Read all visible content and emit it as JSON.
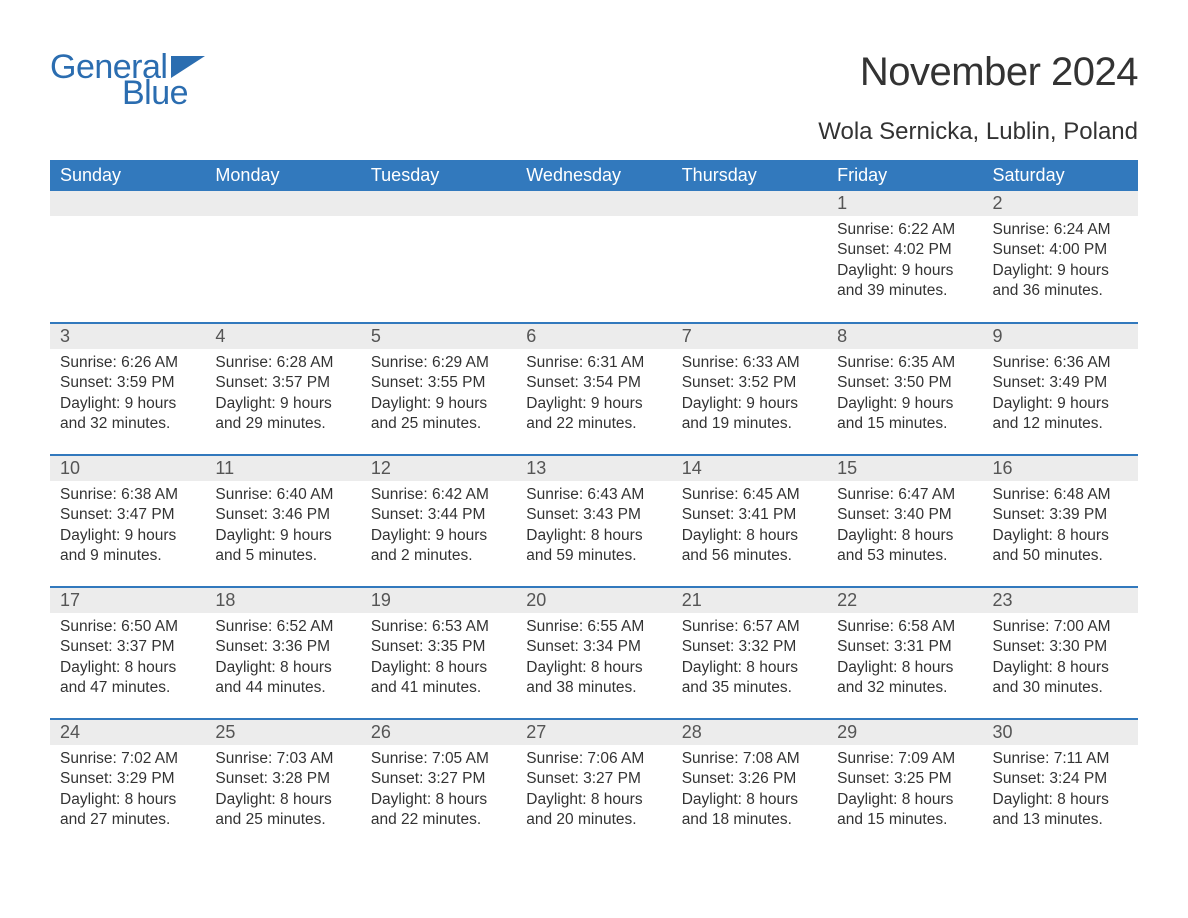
{
  "logo": {
    "general": "General",
    "blue": "Blue"
  },
  "title": "November 2024",
  "location": "Wola Sernicka, Lublin, Poland",
  "colors": {
    "header_bg": "#3279bd",
    "header_text": "#ffffff",
    "daynum_bg": "#ececec",
    "row_border": "#3279bd",
    "logo_color": "#2b6db0",
    "body_text": "#333333"
  },
  "weekdays": [
    "Sunday",
    "Monday",
    "Tuesday",
    "Wednesday",
    "Thursday",
    "Friday",
    "Saturday"
  ],
  "calendar": {
    "start_weekday_index": 5,
    "days": [
      {
        "n": 1,
        "sunrise": "6:22 AM",
        "sunset": "4:02 PM",
        "daylight": "9 hours and 39 minutes."
      },
      {
        "n": 2,
        "sunrise": "6:24 AM",
        "sunset": "4:00 PM",
        "daylight": "9 hours and 36 minutes."
      },
      {
        "n": 3,
        "sunrise": "6:26 AM",
        "sunset": "3:59 PM",
        "daylight": "9 hours and 32 minutes."
      },
      {
        "n": 4,
        "sunrise": "6:28 AM",
        "sunset": "3:57 PM",
        "daylight": "9 hours and 29 minutes."
      },
      {
        "n": 5,
        "sunrise": "6:29 AM",
        "sunset": "3:55 PM",
        "daylight": "9 hours and 25 minutes."
      },
      {
        "n": 6,
        "sunrise": "6:31 AM",
        "sunset": "3:54 PM",
        "daylight": "9 hours and 22 minutes."
      },
      {
        "n": 7,
        "sunrise": "6:33 AM",
        "sunset": "3:52 PM",
        "daylight": "9 hours and 19 minutes."
      },
      {
        "n": 8,
        "sunrise": "6:35 AM",
        "sunset": "3:50 PM",
        "daylight": "9 hours and 15 minutes."
      },
      {
        "n": 9,
        "sunrise": "6:36 AM",
        "sunset": "3:49 PM",
        "daylight": "9 hours and 12 minutes."
      },
      {
        "n": 10,
        "sunrise": "6:38 AM",
        "sunset": "3:47 PM",
        "daylight": "9 hours and 9 minutes."
      },
      {
        "n": 11,
        "sunrise": "6:40 AM",
        "sunset": "3:46 PM",
        "daylight": "9 hours and 5 minutes."
      },
      {
        "n": 12,
        "sunrise": "6:42 AM",
        "sunset": "3:44 PM",
        "daylight": "9 hours and 2 minutes."
      },
      {
        "n": 13,
        "sunrise": "6:43 AM",
        "sunset": "3:43 PM",
        "daylight": "8 hours and 59 minutes."
      },
      {
        "n": 14,
        "sunrise": "6:45 AM",
        "sunset": "3:41 PM",
        "daylight": "8 hours and 56 minutes."
      },
      {
        "n": 15,
        "sunrise": "6:47 AM",
        "sunset": "3:40 PM",
        "daylight": "8 hours and 53 minutes."
      },
      {
        "n": 16,
        "sunrise": "6:48 AM",
        "sunset": "3:39 PM",
        "daylight": "8 hours and 50 minutes."
      },
      {
        "n": 17,
        "sunrise": "6:50 AM",
        "sunset": "3:37 PM",
        "daylight": "8 hours and 47 minutes."
      },
      {
        "n": 18,
        "sunrise": "6:52 AM",
        "sunset": "3:36 PM",
        "daylight": "8 hours and 44 minutes."
      },
      {
        "n": 19,
        "sunrise": "6:53 AM",
        "sunset": "3:35 PM",
        "daylight": "8 hours and 41 minutes."
      },
      {
        "n": 20,
        "sunrise": "6:55 AM",
        "sunset": "3:34 PM",
        "daylight": "8 hours and 38 minutes."
      },
      {
        "n": 21,
        "sunrise": "6:57 AM",
        "sunset": "3:32 PM",
        "daylight": "8 hours and 35 minutes."
      },
      {
        "n": 22,
        "sunrise": "6:58 AM",
        "sunset": "3:31 PM",
        "daylight": "8 hours and 32 minutes."
      },
      {
        "n": 23,
        "sunrise": "7:00 AM",
        "sunset": "3:30 PM",
        "daylight": "8 hours and 30 minutes."
      },
      {
        "n": 24,
        "sunrise": "7:02 AM",
        "sunset": "3:29 PM",
        "daylight": "8 hours and 27 minutes."
      },
      {
        "n": 25,
        "sunrise": "7:03 AM",
        "sunset": "3:28 PM",
        "daylight": "8 hours and 25 minutes."
      },
      {
        "n": 26,
        "sunrise": "7:05 AM",
        "sunset": "3:27 PM",
        "daylight": "8 hours and 22 minutes."
      },
      {
        "n": 27,
        "sunrise": "7:06 AM",
        "sunset": "3:27 PM",
        "daylight": "8 hours and 20 minutes."
      },
      {
        "n": 28,
        "sunrise": "7:08 AM",
        "sunset": "3:26 PM",
        "daylight": "8 hours and 18 minutes."
      },
      {
        "n": 29,
        "sunrise": "7:09 AM",
        "sunset": "3:25 PM",
        "daylight": "8 hours and 15 minutes."
      },
      {
        "n": 30,
        "sunrise": "7:11 AM",
        "sunset": "3:24 PM",
        "daylight": "8 hours and 13 minutes."
      }
    ],
    "labels": {
      "sunrise": "Sunrise:",
      "sunset": "Sunset:",
      "daylight": "Daylight:"
    }
  }
}
